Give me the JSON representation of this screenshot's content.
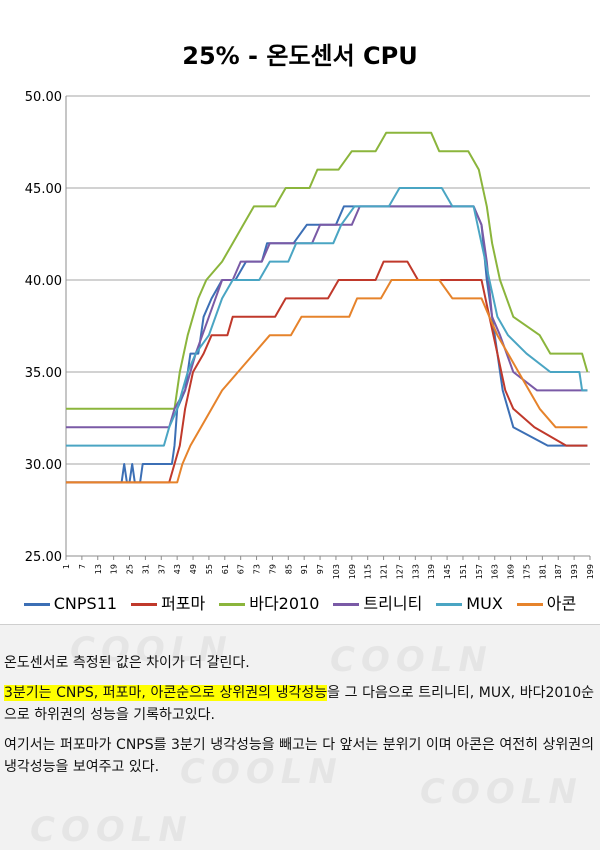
{
  "chart_data": {
    "type": "line",
    "title": "25% - 온도센서 CPU",
    "xlabel": "",
    "ylabel": "",
    "ylim": [
      25,
      50
    ],
    "yticks": [
      "25.00",
      "30.00",
      "35.00",
      "40.00",
      "45.00",
      "50.00"
    ],
    "xticks": [
      1,
      7,
      13,
      19,
      25,
      31,
      37,
      43,
      49,
      55,
      61,
      67,
      73,
      79,
      85,
      91,
      97,
      103,
      109,
      115,
      121,
      127,
      133,
      139,
      145,
      151,
      157,
      163,
      169,
      175,
      181,
      187,
      193,
      199
    ],
    "xlim": [
      1,
      199
    ],
    "grid": true,
    "legend_position": "bottom",
    "series": [
      {
        "name": "CNPS11",
        "color": "#3c6fb5",
        "points": [
          [
            1,
            29
          ],
          [
            22,
            29
          ],
          [
            23,
            30
          ],
          [
            24,
            29
          ],
          [
            25,
            29
          ],
          [
            26,
            30
          ],
          [
            27,
            29
          ],
          [
            29,
            29
          ],
          [
            30,
            30
          ],
          [
            41,
            30
          ],
          [
            42,
            31
          ],
          [
            43,
            33
          ],
          [
            46,
            34
          ],
          [
            48,
            36
          ],
          [
            51,
            36
          ],
          [
            53,
            38
          ],
          [
            56,
            39
          ],
          [
            60,
            40
          ],
          [
            65,
            40
          ],
          [
            69,
            41
          ],
          [
            75,
            41
          ],
          [
            77,
            42
          ],
          [
            87,
            42
          ],
          [
            92,
            43
          ],
          [
            103,
            43
          ],
          [
            106,
            44
          ],
          [
            150,
            44
          ],
          [
            155,
            44
          ],
          [
            158,
            43
          ],
          [
            160,
            40
          ],
          [
            162,
            38
          ],
          [
            164,
            36
          ],
          [
            166,
            34
          ],
          [
            168,
            33
          ],
          [
            170,
            32
          ],
          [
            183,
            31
          ],
          [
            198,
            31
          ]
        ]
      },
      {
        "name": "퍼포마",
        "color": "#c0392b",
        "points": [
          [
            1,
            29
          ],
          [
            40,
            29
          ],
          [
            42,
            30
          ],
          [
            44,
            31
          ],
          [
            46,
            33
          ],
          [
            49,
            35
          ],
          [
            53,
            36
          ],
          [
            56,
            37
          ],
          [
            62,
            37
          ],
          [
            64,
            38
          ],
          [
            80,
            38
          ],
          [
            84,
            39
          ],
          [
            100,
            39
          ],
          [
            104,
            40
          ],
          [
            118,
            40
          ],
          [
            121,
            41
          ],
          [
            130,
            41
          ],
          [
            134,
            40
          ],
          [
            158,
            40
          ],
          [
            161,
            38
          ],
          [
            164,
            36
          ],
          [
            167,
            34
          ],
          [
            170,
            33
          ],
          [
            178,
            32
          ],
          [
            190,
            31
          ],
          [
            198,
            31
          ]
        ]
      },
      {
        "name": "바다2010",
        "color": "#8bb53c",
        "points": [
          [
            1,
            33
          ],
          [
            42,
            33
          ],
          [
            44,
            35
          ],
          [
            47,
            37
          ],
          [
            51,
            39
          ],
          [
            54,
            40
          ],
          [
            60,
            41
          ],
          [
            64,
            42
          ],
          [
            68,
            43
          ],
          [
            72,
            44
          ],
          [
            80,
            44
          ],
          [
            84,
            45
          ],
          [
            93,
            45
          ],
          [
            96,
            46
          ],
          [
            104,
            46
          ],
          [
            109,
            47
          ],
          [
            118,
            47
          ],
          [
            122,
            48
          ],
          [
            139,
            48
          ],
          [
            142,
            47
          ],
          [
            153,
            47
          ],
          [
            157,
            46
          ],
          [
            160,
            44
          ],
          [
            162,
            42
          ],
          [
            165,
            40
          ],
          [
            170,
            38
          ],
          [
            180,
            37
          ],
          [
            184,
            36
          ],
          [
            196,
            36
          ],
          [
            198,
            35
          ]
        ]
      },
      {
        "name": "트리니티",
        "color": "#7a5aa6",
        "points": [
          [
            1,
            32
          ],
          [
            40,
            32
          ],
          [
            42,
            33
          ],
          [
            46,
            34
          ],
          [
            50,
            36
          ],
          [
            55,
            38
          ],
          [
            60,
            40
          ],
          [
            64,
            40
          ],
          [
            67,
            41
          ],
          [
            75,
            41
          ],
          [
            78,
            42
          ],
          [
            94,
            42
          ],
          [
            97,
            43
          ],
          [
            109,
            43
          ],
          [
            112,
            44
          ],
          [
            151,
            44
          ],
          [
            155,
            44
          ],
          [
            158,
            43
          ],
          [
            160,
            41
          ],
          [
            162,
            38
          ],
          [
            165,
            37
          ],
          [
            170,
            35
          ],
          [
            179,
            34
          ],
          [
            198,
            34
          ]
        ]
      },
      {
        "name": "MUX",
        "color": "#4aa5c3",
        "points": [
          [
            1,
            31
          ],
          [
            38,
            31
          ],
          [
            40,
            32
          ],
          [
            43,
            33
          ],
          [
            47,
            35
          ],
          [
            50,
            36
          ],
          [
            55,
            37
          ],
          [
            60,
            39
          ],
          [
            64,
            40
          ],
          [
            74,
            40
          ],
          [
            78,
            41
          ],
          [
            85,
            41
          ],
          [
            88,
            42
          ],
          [
            102,
            42
          ],
          [
            105,
            43
          ],
          [
            110,
            44
          ],
          [
            123,
            44
          ],
          [
            127,
            45
          ],
          [
            143,
            45
          ],
          [
            147,
            44
          ],
          [
            155,
            44
          ],
          [
            158,
            42
          ],
          [
            161,
            40
          ],
          [
            164,
            38
          ],
          [
            168,
            37
          ],
          [
            175,
            36
          ],
          [
            184,
            35
          ],
          [
            195,
            35
          ],
          [
            196,
            34
          ],
          [
            198,
            34
          ]
        ]
      },
      {
        "name": "아콘",
        "color": "#e6832b",
        "points": [
          [
            1,
            29
          ],
          [
            43,
            29
          ],
          [
            45,
            30
          ],
          [
            48,
            31
          ],
          [
            52,
            32
          ],
          [
            56,
            33
          ],
          [
            60,
            34
          ],
          [
            66,
            35
          ],
          [
            72,
            36
          ],
          [
            78,
            37
          ],
          [
            86,
            37
          ],
          [
            90,
            38
          ],
          [
            108,
            38
          ],
          [
            111,
            39
          ],
          [
            120,
            39
          ],
          [
            124,
            40
          ],
          [
            142,
            40
          ],
          [
            147,
            39
          ],
          [
            158,
            39
          ],
          [
            161,
            38
          ],
          [
            164,
            37
          ],
          [
            168,
            36
          ],
          [
            172,
            35
          ],
          [
            176,
            34
          ],
          [
            180,
            33
          ],
          [
            186,
            32
          ],
          [
            198,
            32
          ]
        ]
      }
    ]
  },
  "body_text": {
    "p1": "온도센서로 측정된 값은 차이가 더 갈린다.",
    "p2_highlight": "3분기는 CNPS, 퍼포마, 아콘순으로 상위권의 냉각성능",
    "p2_rest": "을 그 다음으로 트리니티, MUX, 바다2010순으로 하위권의 성능을 기록하고있다.",
    "p3": "여기서는 퍼포마가 CNPS를 3분기 냉각성능을 빼고는 다 앞서는 분위기 이며 아콘은 여전히 상위권의 냉각성능을 보여주고 있다."
  },
  "watermark": {
    "text": "COOLN",
    "url": "www.cooln.kr"
  }
}
